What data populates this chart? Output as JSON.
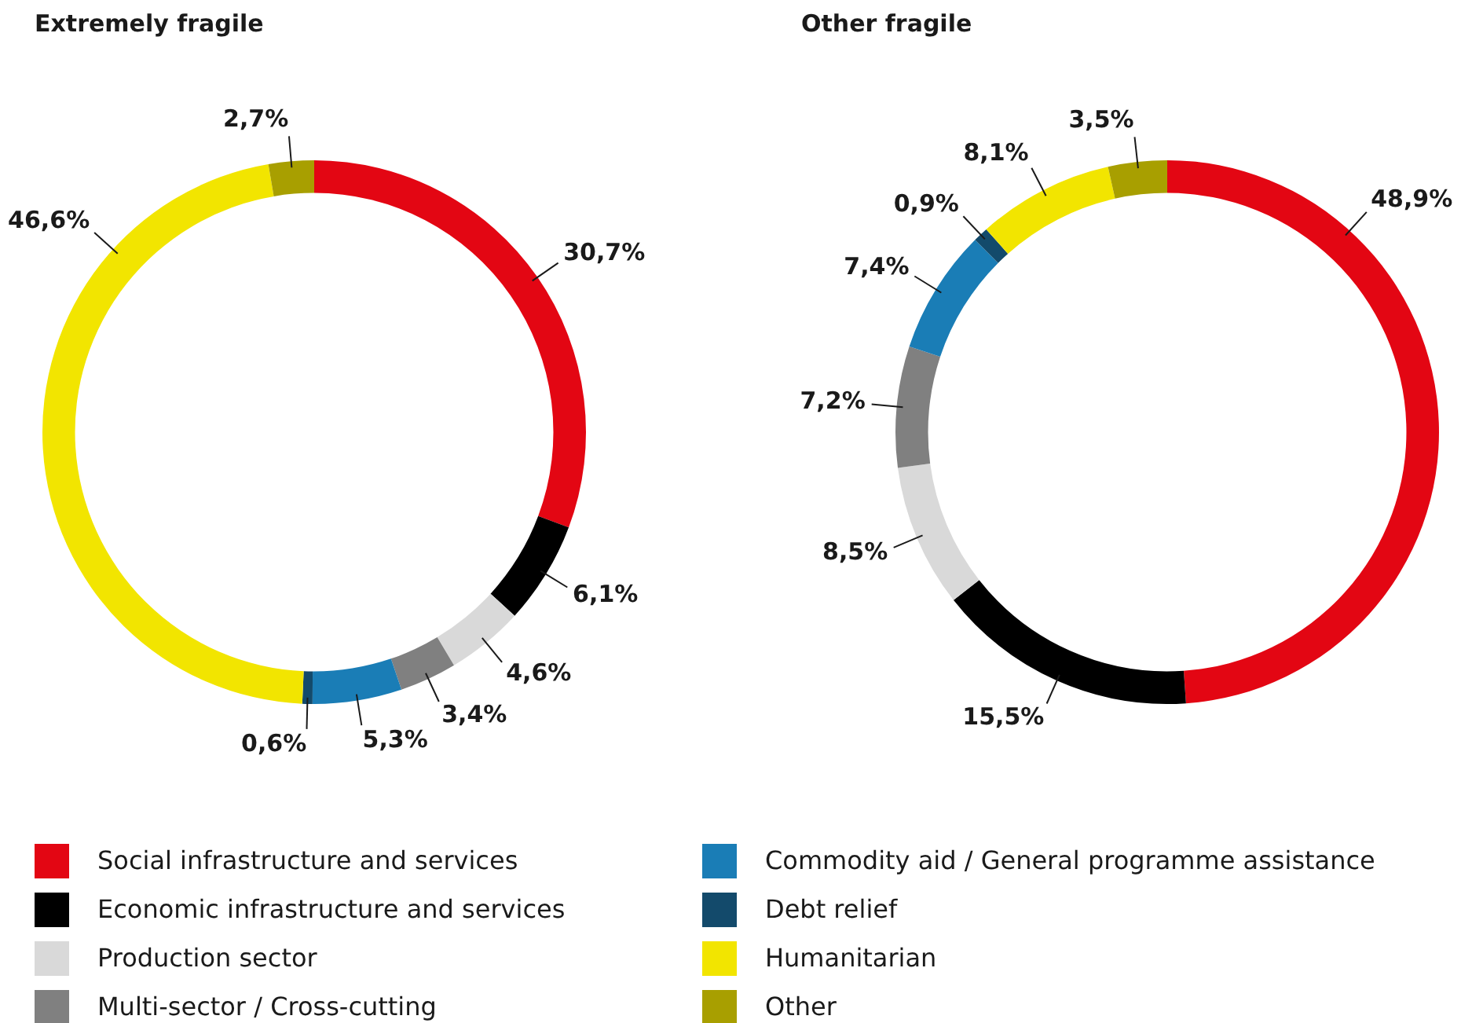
{
  "chart_data": [
    {
      "type": "donut",
      "title": "Extremely fragile",
      "categories": [
        "Social infrastructure and services",
        "Economic infrastructure and services",
        "Production sector",
        "Multi-sector / Cross-cutting",
        "Commodity aid / General programme assistance",
        "Debt relief",
        "Humanitarian",
        "Other"
      ],
      "values": [
        30.7,
        6.1,
        4.6,
        3.4,
        5.3,
        0.6,
        46.6,
        2.7
      ],
      "value_labels": [
        "30,7%",
        "6,1%",
        "4,6%",
        "3,4%",
        "5,3%",
        "0,6%",
        "46,6%",
        "2,7%"
      ],
      "colors": [
        "#e30613",
        "#000000",
        "#d9d9d9",
        "#808080",
        "#1a7db6",
        "#134a6b",
        "#f2e500",
        "#a89f00"
      ],
      "legend": "bottom"
    },
    {
      "type": "donut",
      "title": "Other fragile",
      "categories": [
        null,
        null,
        null,
        null,
        null,
        null,
        null,
        null
      ],
      "values": [
        48.9,
        15.5,
        8.5,
        7.2,
        7.4,
        0.9,
        8.1,
        3.5
      ],
      "value_labels": [
        "48,9%",
        "15,5%",
        "8,5%",
        "7,2%",
        "7,4%",
        "0,9%",
        "8,1%",
        "3,5%"
      ],
      "colors": [
        "#e30613",
        "#000000",
        "#d9d9d9",
        "#808080",
        "#1a7db6",
        "#134a6b",
        "#f2e500",
        "#a89f00"
      ]
    }
  ]
}
